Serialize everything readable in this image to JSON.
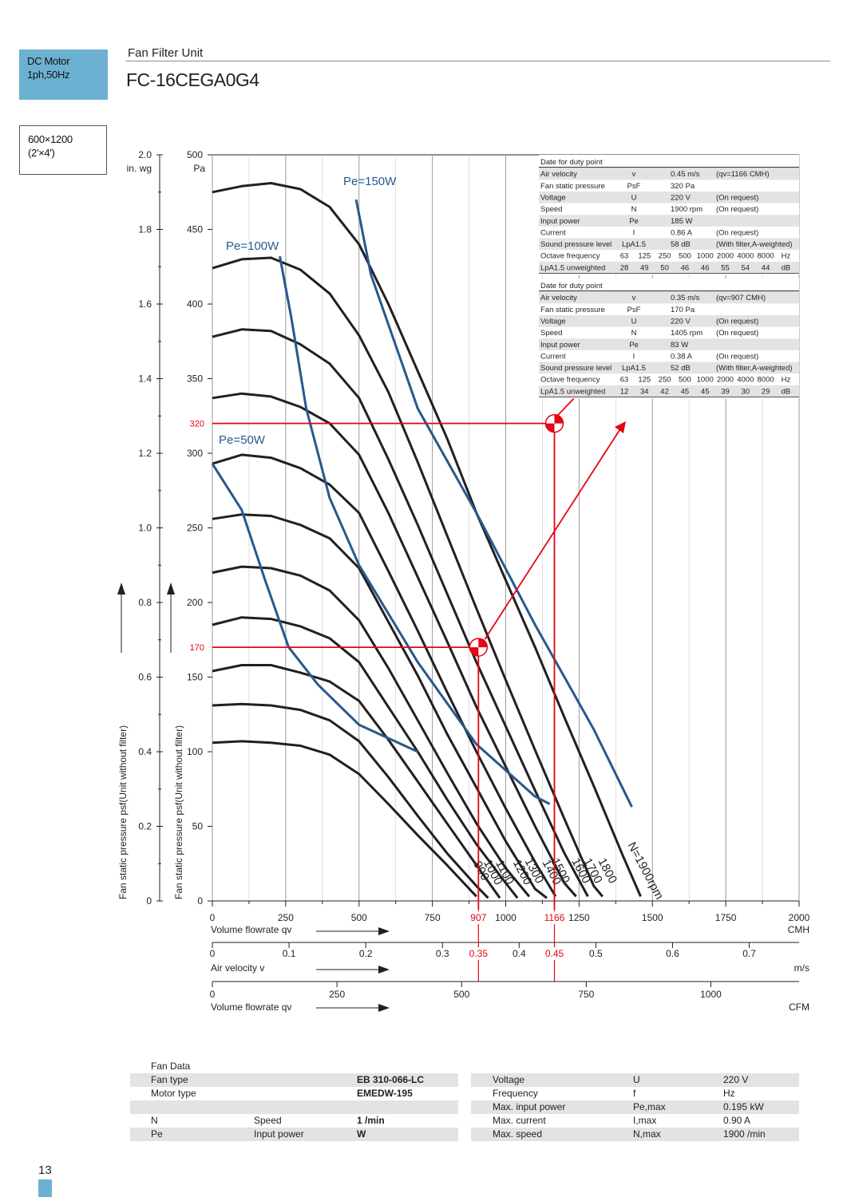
{
  "header": {
    "motor": [
      "DC Motor",
      "1ph,50Hz"
    ],
    "size": [
      "600×1200",
      "(2'×4')"
    ],
    "series": "Fan Filter Unit",
    "model": "FC-16CEGA0G4"
  },
  "chart_data": {
    "type": "line",
    "title": "FC-16CEGA0G4",
    "x_primary": {
      "label": "Volume flowrate qv",
      "unit": "CMH",
      "range": [
        0,
        2000
      ],
      "ticks": [
        "0",
        "250",
        "500",
        "750",
        "1000",
        "1250",
        "1500",
        "1750",
        "2000"
      ]
    },
    "x_velocity": {
      "label": "Air velocity v",
      "unit": "m/s",
      "range": [
        0,
        0.765
      ],
      "ticks": [
        "0",
        "0.1",
        "0.2",
        "0.3",
        "0.4",
        "0.5",
        "0.6",
        "0.7"
      ]
    },
    "x_cfm": {
      "label": "Volume flowrate qv",
      "unit": "CFM",
      "range": [
        0,
        1177
      ],
      "ticks": [
        "0",
        "250",
        "500",
        "750",
        "1000"
      ]
    },
    "y_pa": {
      "unit": "Pa",
      "range": [
        0,
        500
      ],
      "ticks": [
        "0",
        "50",
        "100",
        "150",
        "200",
        "250",
        "300",
        "350",
        "400",
        "450",
        "500"
      ]
    },
    "y_inwg": {
      "unit": "in. wg",
      "range": [
        0,
        2.0
      ],
      "ticks": [
        "0",
        "0.2",
        "0.4",
        "0.6",
        "0.8",
        "1.0",
        "1.2",
        "1.4",
        "1.6",
        "1.8",
        "2.0"
      ]
    },
    "ylabel": "Fan static pressure psf(Unit without filter)",
    "grid": true,
    "speed_curves": [
      {
        "name": "900",
        "points": [
          [
            0,
            106
          ],
          [
            100,
            107
          ],
          [
            200,
            106
          ],
          [
            300,
            104
          ],
          [
            400,
            98
          ],
          [
            500,
            85
          ],
          [
            600,
            65
          ],
          [
            700,
            44
          ],
          [
            800,
            24
          ],
          [
            900,
            3
          ]
        ]
      },
      {
        "name": "1000",
        "points": [
          [
            0,
            131
          ],
          [
            100,
            132
          ],
          [
            200,
            131
          ],
          [
            300,
            128
          ],
          [
            400,
            121
          ],
          [
            500,
            107
          ],
          [
            600,
            83
          ],
          [
            700,
            57
          ],
          [
            800,
            32
          ],
          [
            900,
            10
          ],
          [
            940,
            2
          ]
        ]
      },
      {
        "name": "1100",
        "points": [
          [
            0,
            154
          ],
          [
            100,
            158
          ],
          [
            200,
            158
          ],
          [
            300,
            153
          ],
          [
            400,
            147
          ],
          [
            500,
            134
          ],
          [
            600,
            108
          ],
          [
            700,
            80
          ],
          [
            800,
            52
          ],
          [
            900,
            24
          ],
          [
            980,
            2
          ]
        ]
      },
      {
        "name": "1200",
        "points": [
          [
            0,
            185
          ],
          [
            100,
            190
          ],
          [
            200,
            189
          ],
          [
            300,
            184
          ],
          [
            400,
            176
          ],
          [
            500,
            160
          ],
          [
            600,
            130
          ],
          [
            700,
            100
          ],
          [
            800,
            68
          ],
          [
            900,
            38
          ],
          [
            1000,
            12
          ],
          [
            1040,
            2
          ]
        ]
      },
      {
        "name": "1300",
        "points": [
          [
            0,
            220
          ],
          [
            100,
            224
          ],
          [
            200,
            223
          ],
          [
            300,
            218
          ],
          [
            400,
            208
          ],
          [
            500,
            188
          ],
          [
            600,
            156
          ],
          [
            700,
            121
          ],
          [
            800,
            86
          ],
          [
            900,
            52
          ],
          [
            1000,
            22
          ],
          [
            1080,
            3
          ]
        ]
      },
      {
        "name": "1400",
        "points": [
          [
            0,
            256
          ],
          [
            100,
            259
          ],
          [
            200,
            258
          ],
          [
            300,
            252
          ],
          [
            400,
            243
          ],
          [
            500,
            223
          ],
          [
            600,
            187
          ],
          [
            700,
            151
          ],
          [
            800,
            112
          ],
          [
            900,
            76
          ],
          [
            1000,
            40
          ],
          [
            1100,
            8
          ],
          [
            1140,
            2
          ]
        ]
      },
      {
        "name": "1500",
        "points": [
          [
            0,
            293
          ],
          [
            100,
            299
          ],
          [
            200,
            297
          ],
          [
            300,
            290
          ],
          [
            400,
            279
          ],
          [
            500,
            260
          ],
          [
            600,
            221
          ],
          [
            700,
            181
          ],
          [
            800,
            140
          ],
          [
            900,
            100
          ],
          [
            1000,
            62
          ],
          [
            1100,
            26
          ],
          [
            1170,
            3
          ]
        ]
      },
      {
        "name": "1600",
        "points": [
          [
            0,
            337
          ],
          [
            100,
            340
          ],
          [
            200,
            338
          ],
          [
            300,
            331
          ],
          [
            400,
            320
          ],
          [
            500,
            299
          ],
          [
            600,
            260
          ],
          [
            700,
            217
          ],
          [
            800,
            174
          ],
          [
            900,
            130
          ],
          [
            1000,
            90
          ],
          [
            1100,
            50
          ],
          [
            1200,
            12
          ],
          [
            1240,
            3
          ]
        ]
      },
      {
        "name": "1700",
        "points": [
          [
            0,
            378
          ],
          [
            100,
            383
          ],
          [
            200,
            382
          ],
          [
            300,
            373
          ],
          [
            400,
            360
          ],
          [
            500,
            337
          ],
          [
            600,
            296
          ],
          [
            700,
            252
          ],
          [
            800,
            206
          ],
          [
            900,
            160
          ],
          [
            1000,
            117
          ],
          [
            1100,
            74
          ],
          [
            1200,
            32
          ],
          [
            1280,
            3
          ]
        ]
      },
      {
        "name": "1800",
        "points": [
          [
            0,
            424
          ],
          [
            100,
            430
          ],
          [
            200,
            431
          ],
          [
            300,
            423
          ],
          [
            400,
            407
          ],
          [
            500,
            379
          ],
          [
            600,
            341
          ],
          [
            700,
            294
          ],
          [
            800,
            245
          ],
          [
            900,
            196
          ],
          [
            1000,
            148
          ],
          [
            1100,
            101
          ],
          [
            1200,
            55
          ],
          [
            1300,
            10
          ],
          [
            1330,
            3
          ]
        ]
      },
      {
        "name": "N=1900rpm",
        "points": [
          [
            0,
            475
          ],
          [
            100,
            479
          ],
          [
            200,
            481
          ],
          [
            300,
            477
          ],
          [
            400,
            465
          ],
          [
            500,
            440
          ],
          [
            600,
            400
          ],
          [
            700,
            355
          ],
          [
            800,
            310
          ],
          [
            900,
            260
          ],
          [
            1000,
            215
          ],
          [
            1100,
            170
          ],
          [
            1200,
            123
          ],
          [
            1300,
            77
          ],
          [
            1400,
            30
          ],
          [
            1460,
            3
          ]
        ]
      }
    ],
    "power_curves": [
      {
        "name": "Pe=150W",
        "label": "Pe=150W",
        "points": [
          [
            490,
            470
          ],
          [
            540,
            420
          ],
          [
            700,
            330
          ],
          [
            900,
            260
          ],
          [
            1100,
            185
          ],
          [
            1300,
            115
          ],
          [
            1430,
            63
          ]
        ]
      },
      {
        "name": "Pe=100W",
        "label": "Pe=100W",
        "points": [
          [
            230,
            432
          ],
          [
            270,
            390
          ],
          [
            320,
            330
          ],
          [
            400,
            270
          ],
          [
            500,
            225
          ],
          [
            700,
            160
          ],
          [
            900,
            105
          ],
          [
            1100,
            70
          ],
          [
            1150,
            65
          ]
        ]
      },
      {
        "name": "Pe=50W",
        "label": "Pe=50W",
        "points": [
          [
            0,
            293
          ],
          [
            100,
            262
          ],
          [
            180,
            215
          ],
          [
            260,
            170
          ],
          [
            360,
            145
          ],
          [
            500,
            118
          ],
          [
            700,
            100
          ]
        ]
      }
    ],
    "duty_points": [
      {
        "label_flow": "907",
        "label_velocity": "0.35",
        "label_pressure": "170",
        "flow": 907,
        "pressure": 170
      },
      {
        "label_flow": "1166",
        "label_velocity": "0.45",
        "label_pressure": "320",
        "flow": 1166,
        "pressure": 320
      }
    ]
  },
  "duty_tables": [
    {
      "title": "Date for duty point",
      "rows": [
        [
          "Air velocity",
          "v",
          "0.45 m/s",
          "(qv=1166 CMH)"
        ],
        [
          "Fan static pressure",
          "PsF",
          "320 Pa",
          ""
        ],
        [
          "Voltage",
          "U",
          "220 V",
          "(On request)"
        ],
        [
          "Speed",
          "N",
          "1900 rpm",
          "(On request)"
        ],
        [
          "Input power",
          "Pe",
          "185 W",
          ""
        ],
        [
          "Current",
          "I",
          "0.86 A",
          "(On request)"
        ],
        [
          "Sound pressure level",
          "LpA1.5",
          "58 dB",
          "(With filter,A-weighted)"
        ]
      ],
      "octave_label": "Octave frequency",
      "octave_values": [
        "63",
        "125",
        "250",
        "500",
        "1000",
        "2000",
        "4000",
        "8000",
        "Hz"
      ],
      "unweighted_label": "LpA1.5 unweighted",
      "unweighted_values": [
        "28",
        "49",
        "50",
        "46",
        "46",
        "55",
        "54",
        "44",
        "dB"
      ]
    },
    {
      "title": "Date for duty point",
      "rows": [
        [
          "Air velocity",
          "v",
          "0.35 m/s",
          "(qv=907 CMH)"
        ],
        [
          "Fan static pressure",
          "PsF",
          "170 Pa",
          ""
        ],
        [
          "Voltage",
          "U",
          "220 V",
          "(On request)"
        ],
        [
          "Speed",
          "N",
          "1405 rpm",
          "(On request)"
        ],
        [
          "Input power",
          "Pe",
          "83 W",
          ""
        ],
        [
          "Current",
          "I",
          "0.38 A",
          "(On request)"
        ],
        [
          "Sound pressure level",
          "LpA1.5",
          "52 dB",
          "(With filter,A-weighted)"
        ]
      ],
      "octave_label": "Octave frequency",
      "octave_values": [
        "63",
        "125",
        "250",
        "500",
        "1000",
        "2000",
        "4000",
        "8000",
        "Hz"
      ],
      "unweighted_label": "LpA1.5 unweighted",
      "unweighted_values": [
        "12",
        "34",
        "42",
        "45",
        "45",
        "39",
        "30",
        "29",
        "dB"
      ]
    }
  ],
  "fan_data": {
    "title": "Fan Data",
    "left_rows": [
      [
        "Fan type",
        "",
        "EB 310-066-LC"
      ],
      [
        "Motor type",
        "",
        "EMEDW-195"
      ],
      [
        "",
        "",
        ""
      ],
      [
        "N",
        "Speed",
        "1 /min"
      ],
      [
        "Pe",
        "Input power",
        "W"
      ]
    ],
    "right_rows": [
      [
        "Voltage",
        "U",
        "220 V"
      ],
      [
        "Frequency",
        "f",
        "Hz"
      ],
      [
        "Max. input power",
        "Pe,max",
        "0.195 kW"
      ],
      [
        "Max. current",
        "I,max",
        "0.90 A"
      ],
      [
        "Max. speed",
        "N,max",
        "1900 /min"
      ]
    ]
  },
  "page_number": "13",
  "colors": {
    "accent": "#6cb1d1",
    "curve": "#231f20",
    "power": "#27598c",
    "duty": "#e30613",
    "stripe": "#e3e3e3"
  }
}
